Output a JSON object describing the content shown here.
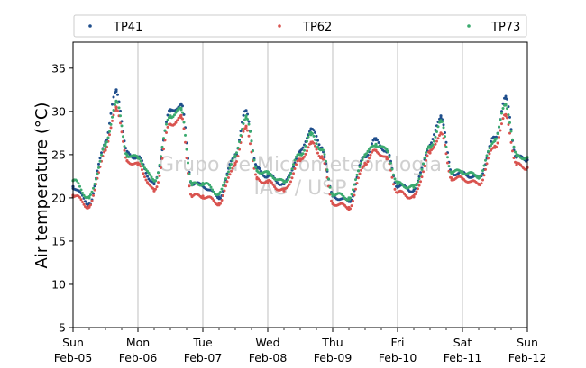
{
  "chart_data": {
    "type": "scatter",
    "title": "",
    "xlabel": "",
    "ylabel": "Air temperature (°C)",
    "ylim": [
      5,
      38
    ],
    "xlim": [
      "2017-02-05 00:00",
      "2017-02-12 00:00"
    ],
    "yticks": [
      5,
      10,
      15,
      20,
      25,
      30,
      35
    ],
    "xticks": [
      {
        "day": "Sun",
        "date": "Feb-05"
      },
      {
        "day": "Mon",
        "date": "Feb-06"
      },
      {
        "day": "Tue",
        "date": "Feb-07"
      },
      {
        "day": "Wed",
        "date": "Feb-08"
      },
      {
        "day": "Thu",
        "date": "Feb-09"
      },
      {
        "day": "Fri",
        "date": "Feb-10"
      },
      {
        "day": "Sat",
        "date": "Feb-11"
      },
      {
        "day": "Sun",
        "date": "Feb-12"
      }
    ],
    "grid": "vertical",
    "legend_position": "top",
    "watermark": [
      "Grupo de Micrometeorologia",
      "IAG / USP"
    ],
    "series": [
      {
        "name": "TP41",
        "color": "#1f4e8c",
        "x": [
          "2017-02-05 00:00",
          "2017-02-05 06:00",
          "2017-02-05 12:00",
          "2017-02-05 16:00",
          "2017-02-05 20:00",
          "2017-02-06 00:00",
          "2017-02-06 06:00",
          "2017-02-06 12:00",
          "2017-02-06 16:00",
          "2017-02-06 20:00",
          "2017-02-07 00:00",
          "2017-02-07 06:00",
          "2017-02-07 12:00",
          "2017-02-07 16:00",
          "2017-02-07 20:00",
          "2017-02-08 00:00",
          "2017-02-08 06:00",
          "2017-02-08 12:00",
          "2017-02-08 16:00",
          "2017-02-08 20:00",
          "2017-02-09 00:00",
          "2017-02-09 06:00",
          "2017-02-09 12:00",
          "2017-02-09 16:00",
          "2017-02-09 20:00",
          "2017-02-10 00:00",
          "2017-02-10 06:00",
          "2017-02-10 12:00",
          "2017-02-10 16:00",
          "2017-02-10 20:00",
          "2017-02-11 00:00",
          "2017-02-11 06:00",
          "2017-02-11 12:00",
          "2017-02-11 16:00",
          "2017-02-11 20:00",
          "2017-02-12 00:00"
        ],
        "y": [
          21.3,
          19.3,
          26.5,
          32.5,
          25.2,
          24.6,
          21.6,
          30.0,
          30.8,
          21.7,
          21.4,
          20.1,
          25.0,
          30.1,
          23.4,
          22.5,
          21.6,
          25.2,
          28.0,
          25.8,
          20.2,
          19.6,
          24.9,
          26.7,
          25.3,
          21.4,
          20.9,
          26.0,
          29.5,
          22.9,
          22.8,
          22.3,
          27.0,
          31.5,
          24.7,
          24.4
        ]
      },
      {
        "name": "TP62",
        "color": "#d9534f",
        "x": [
          "2017-02-05 00:00",
          "2017-02-05 06:00",
          "2017-02-05 12:00",
          "2017-02-05 16:00",
          "2017-02-05 20:00",
          "2017-02-06 00:00",
          "2017-02-06 06:00",
          "2017-02-06 12:00",
          "2017-02-06 16:00",
          "2017-02-06 20:00",
          "2017-02-07 00:00",
          "2017-02-07 06:00",
          "2017-02-07 12:00",
          "2017-02-07 16:00",
          "2017-02-07 20:00",
          "2017-02-08 00:00",
          "2017-02-08 06:00",
          "2017-02-08 12:00",
          "2017-02-08 16:00",
          "2017-02-08 20:00",
          "2017-02-09 00:00",
          "2017-02-09 06:00",
          "2017-02-09 12:00",
          "2017-02-09 16:00",
          "2017-02-09 20:00",
          "2017-02-10 00:00",
          "2017-02-10 06:00",
          "2017-02-10 12:00",
          "2017-02-10 16:00",
          "2017-02-10 20:00",
          "2017-02-11 00:00",
          "2017-02-11 06:00",
          "2017-02-11 12:00",
          "2017-02-11 16:00",
          "2017-02-11 20:00",
          "2017-02-12 00:00"
        ],
        "y": [
          20.3,
          19.0,
          25.5,
          30.5,
          24.3,
          23.8,
          20.8,
          28.5,
          29.3,
          20.2,
          20.2,
          19.4,
          24.0,
          28.3,
          22.2,
          21.8,
          20.8,
          24.3,
          26.3,
          24.8,
          19.4,
          18.9,
          24.0,
          25.5,
          24.5,
          20.6,
          20.1,
          25.2,
          27.5,
          22.3,
          22.2,
          21.6,
          26.0,
          29.5,
          23.8,
          23.5
        ]
      },
      {
        "name": "TP73",
        "color": "#3aaa6e",
        "x": [
          "2017-02-05 00:00",
          "2017-02-05 06:00",
          "2017-02-05 12:00",
          "2017-02-05 16:00",
          "2017-02-05 20:00",
          "2017-02-06 00:00",
          "2017-02-06 06:00",
          "2017-02-06 12:00",
          "2017-02-06 16:00",
          "2017-02-06 20:00",
          "2017-02-07 00:00",
          "2017-02-07 06:00",
          "2017-02-07 12:00",
          "2017-02-07 16:00",
          "2017-02-07 20:00",
          "2017-02-08 00:00",
          "2017-02-08 06:00",
          "2017-02-08 12:00",
          "2017-02-08 16:00",
          "2017-02-08 20:00",
          "2017-02-09 00:00",
          "2017-02-09 06:00",
          "2017-02-09 12:00",
          "2017-02-09 16:00",
          "2017-02-09 20:00",
          "2017-02-10 00:00",
          "2017-02-10 06:00",
          "2017-02-10 12:00",
          "2017-02-10 16:00",
          "2017-02-10 20:00",
          "2017-02-11 00:00",
          "2017-02-11 06:00",
          "2017-02-11 12:00",
          "2017-02-11 16:00",
          "2017-02-11 20:00",
          "2017-02-12 00:00"
        ],
        "y": [
          22.0,
          20.0,
          26.0,
          31.2,
          25.0,
          24.6,
          22.0,
          29.5,
          30.2,
          21.5,
          21.7,
          20.5,
          24.8,
          29.5,
          23.2,
          22.8,
          21.8,
          25.0,
          27.3,
          25.6,
          20.5,
          20.0,
          25.0,
          26.2,
          25.5,
          21.6,
          21.2,
          25.8,
          28.8,
          23.0,
          23.0,
          22.5,
          26.8,
          30.8,
          24.8,
          24.7
        ]
      }
    ]
  }
}
